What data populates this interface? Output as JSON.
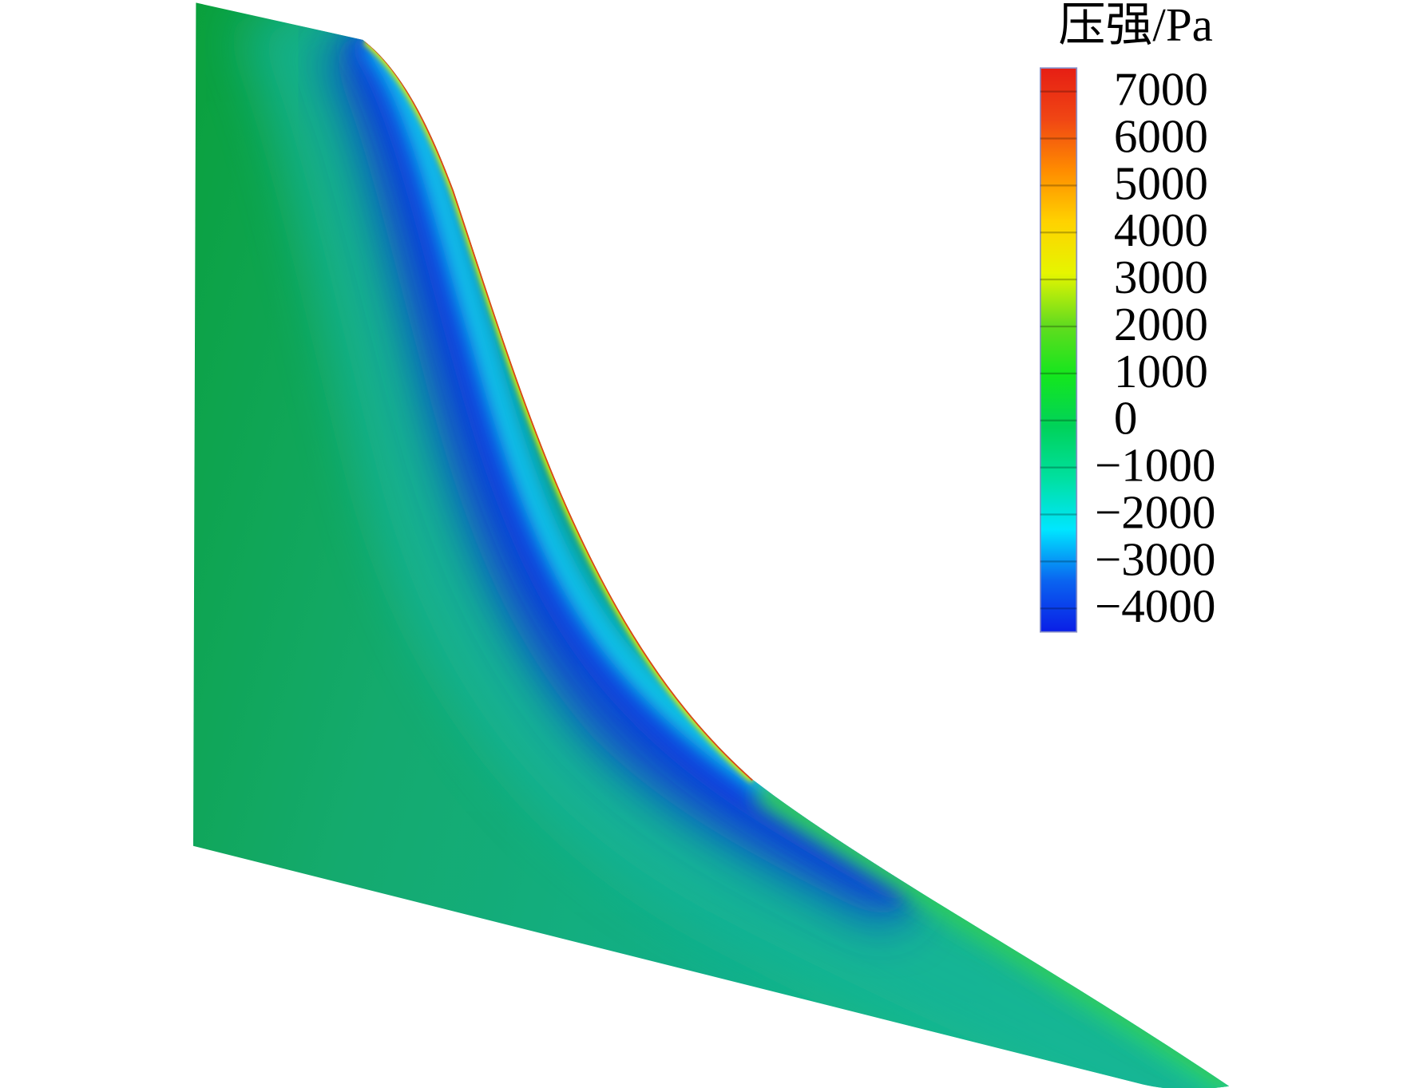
{
  "chart_data": {
    "type": "contour",
    "colorbar_title": "压强/Pa",
    "clim": [
      -4500,
      7500
    ],
    "colormap": [
      "#0a1ee6",
      "#0a64f0",
      "#00e6ff",
      "#00e0a0",
      "#00d25a",
      "#14e61e",
      "#64dc1e",
      "#e6f500",
      "#ffd200",
      "#ff8c00",
      "#f04614",
      "#e61e14"
    ],
    "cticks": [
      {
        "value": -4000,
        "label": "−4000"
      },
      {
        "value": -3000,
        "label": "−3000"
      },
      {
        "value": -2000,
        "label": "−2000"
      },
      {
        "value": -1000,
        "label": "−1000"
      },
      0,
      1000,
      2000,
      3000,
      4000,
      5000,
      6000,
      7000
    ]
  }
}
